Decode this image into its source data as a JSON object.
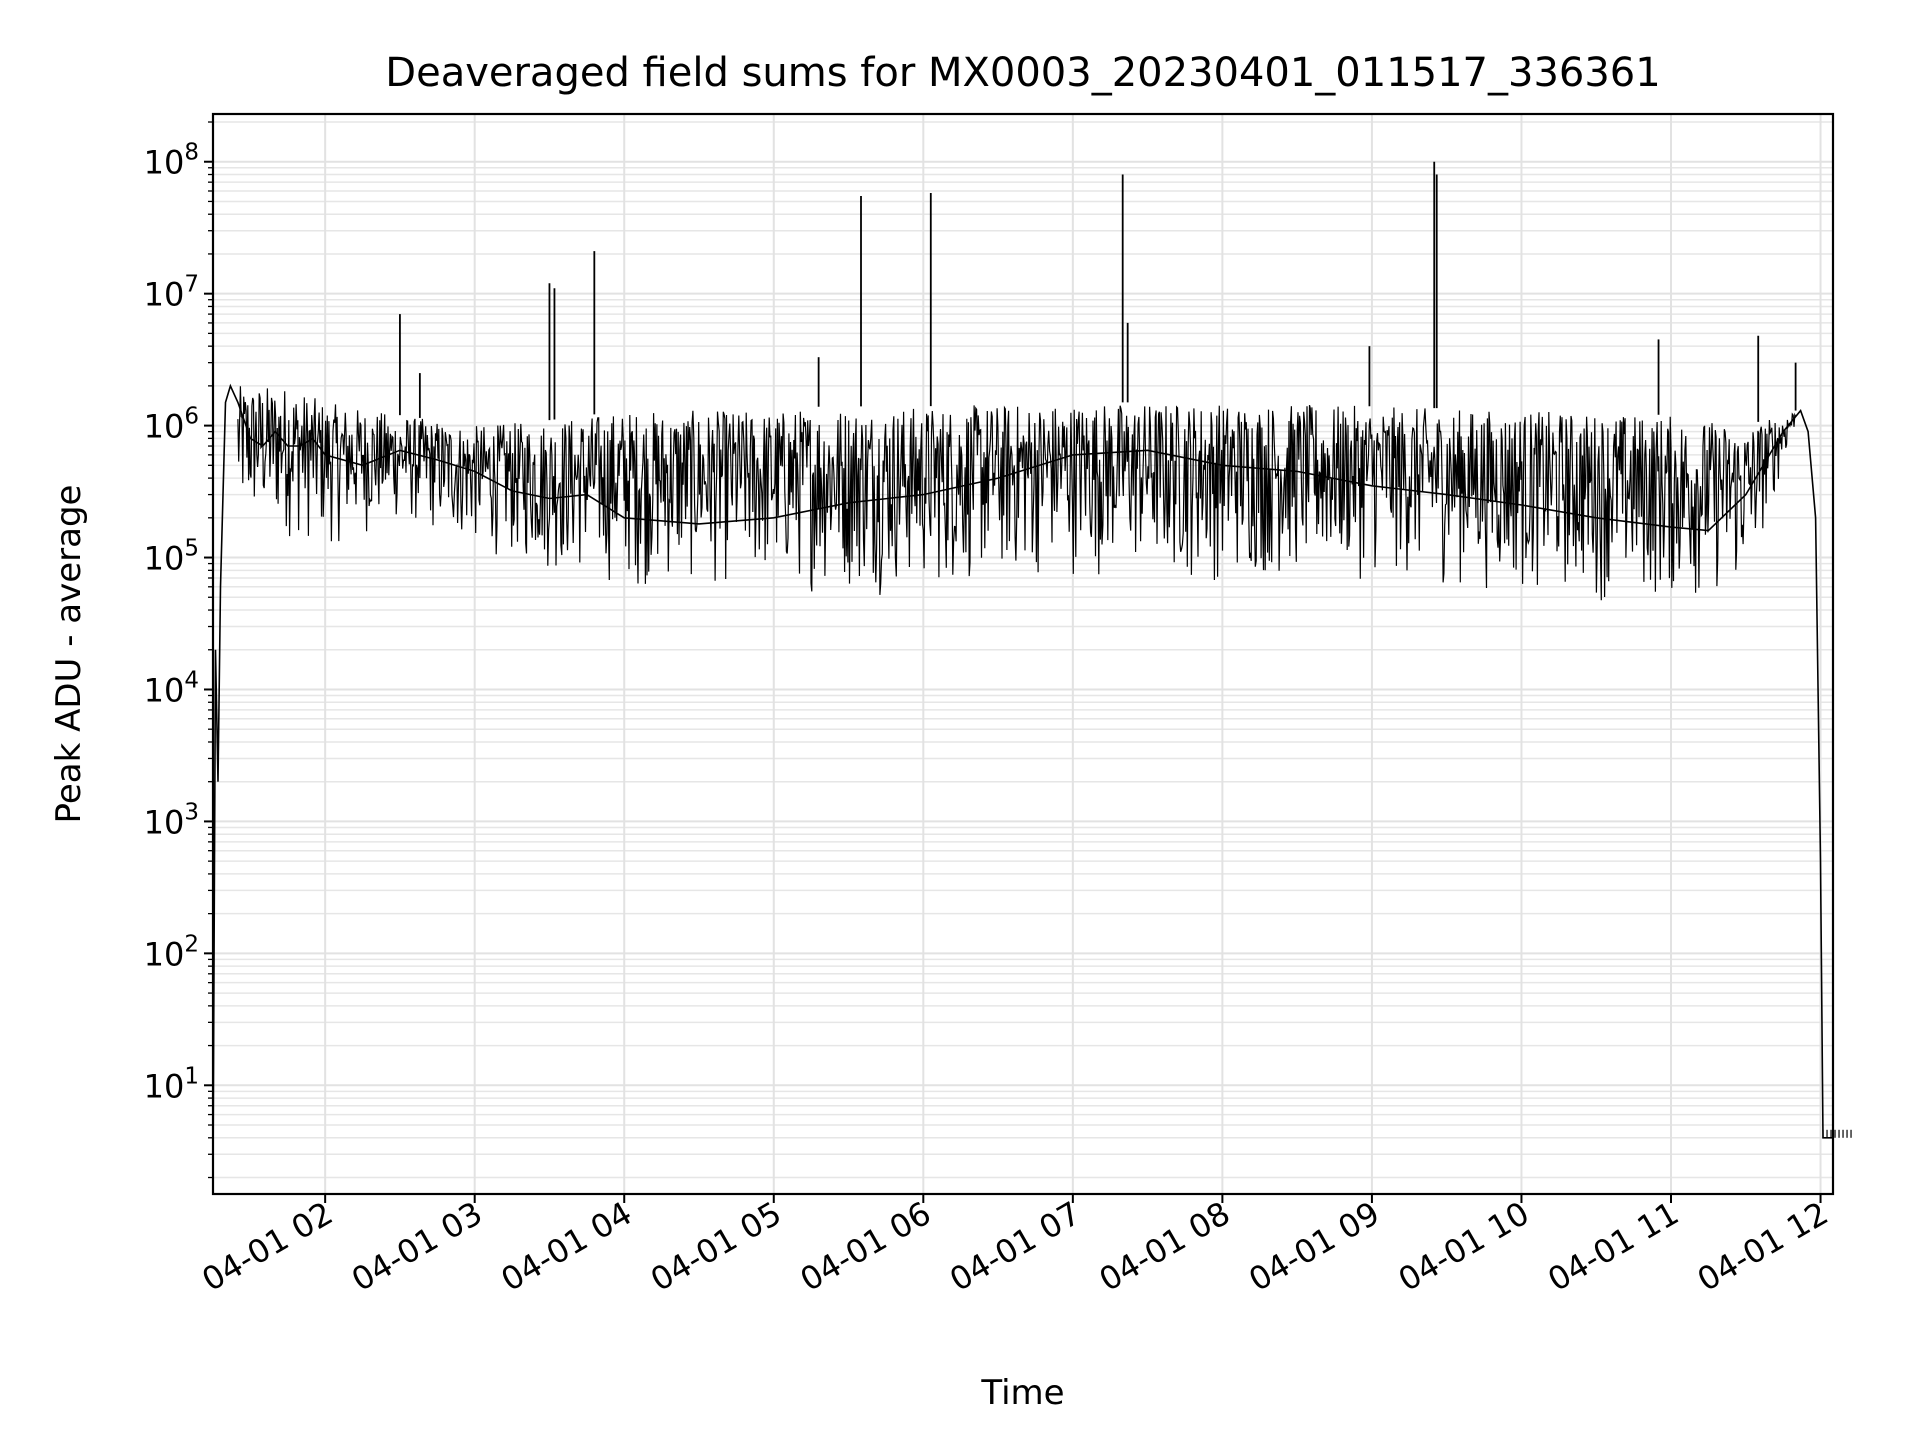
{
  "chart_data": {
    "type": "line",
    "title": "Deaveraged field sums for MX0003_20230401_011517_336361",
    "xlabel": "Time",
    "ylabel": "Peak ADU - average",
    "yscale": "log",
    "ylim": [
      1.5,
      230000000.0
    ],
    "xlim": [
      "2023-04-01T01:15",
      "2023-04-01T12:05"
    ],
    "grid": true,
    "line_color": "#000000",
    "x_ticks": [
      {
        "at": "2023-04-01T02:00",
        "label": "04-01 02"
      },
      {
        "at": "2023-04-01T03:00",
        "label": "04-01 03"
      },
      {
        "at": "2023-04-01T04:00",
        "label": "04-01 04"
      },
      {
        "at": "2023-04-01T05:00",
        "label": "04-01 05"
      },
      {
        "at": "2023-04-01T06:00",
        "label": "04-01 06"
      },
      {
        "at": "2023-04-01T07:00",
        "label": "04-01 07"
      },
      {
        "at": "2023-04-01T08:00",
        "label": "04-01 08"
      },
      {
        "at": "2023-04-01T09:00",
        "label": "04-01 09"
      },
      {
        "at": "2023-04-01T10:00",
        "label": "04-01 10"
      },
      {
        "at": "2023-04-01T11:00",
        "label": "04-01 11"
      },
      {
        "at": "2023-04-01T12:00",
        "label": "04-01 12"
      }
    ],
    "y_ticks": [
      {
        "value": 10,
        "base": "10",
        "exp": "1"
      },
      {
        "value": 100,
        "base": "10",
        "exp": "2"
      },
      {
        "value": 1000,
        "base": "10",
        "exp": "3"
      },
      {
        "value": 10000,
        "base": "10",
        "exp": "4"
      },
      {
        "value": 100000,
        "base": "10",
        "exp": "5"
      },
      {
        "value": 1000000,
        "base": "10",
        "exp": "6"
      },
      {
        "value": 10000000,
        "base": "10",
        "exp": "7"
      },
      {
        "value": 100000000,
        "base": "10",
        "exp": "8"
      }
    ],
    "series": [
      {
        "x": [
          "2023-04-01T01:15",
          "2023-04-01T01:16",
          "2023-04-01T01:17",
          "2023-04-01T01:18",
          "2023-04-01T01:19",
          "2023-04-01T01:20",
          "2023-04-01T01:22",
          "2023-04-01T01:25",
          "2023-04-01T01:30",
          "2023-04-01T01:35",
          "2023-04-01T01:40",
          "2023-04-01T01:45",
          "2023-04-01T01:50",
          "2023-04-01T01:55",
          "2023-04-01T02:00",
          "2023-04-01T02:15",
          "2023-04-01T02:30",
          "2023-04-01T02:45",
          "2023-04-01T03:00",
          "2023-04-01T03:15",
          "2023-04-01T03:30",
          "2023-04-01T03:45",
          "2023-04-01T04:00",
          "2023-04-01T04:30",
          "2023-04-01T05:00",
          "2023-04-01T05:30",
          "2023-04-01T06:00",
          "2023-04-01T06:30",
          "2023-04-01T07:00",
          "2023-04-01T07:30",
          "2023-04-01T08:00",
          "2023-04-01T08:30",
          "2023-04-01T09:00",
          "2023-04-01T09:30",
          "2023-04-01T10:00",
          "2023-04-01T10:30",
          "2023-04-01T11:00",
          "2023-04-01T11:15",
          "2023-04-01T11:30",
          "2023-04-01T11:45",
          "2023-04-01T11:52",
          "2023-04-01T11:55",
          "2023-04-01T11:58",
          "2023-04-01T12:00",
          "2023-04-01T12:01",
          "2023-04-01T12:05"
        ],
        "y": [
          2,
          20000,
          2000,
          60000,
          300000,
          1500000,
          2000000,
          1500000,
          800000,
          700000,
          900000,
          700000,
          700000,
          800000,
          600000,
          500000,
          650000,
          550000,
          450000,
          320000,
          280000,
          300000,
          200000,
          180000,
          200000,
          260000,
          300000,
          400000,
          600000,
          650000,
          500000,
          450000,
          350000,
          300000,
          250000,
          200000,
          170000,
          160000,
          300000,
          900000,
          1300000,
          900000,
          200000,
          500,
          4,
          4
        ]
      }
    ],
    "upper_envelope": {
      "x": [
        "2023-04-01T01:25",
        "2023-04-01T01:45",
        "2023-04-01T02:00",
        "2023-04-01T02:30",
        "2023-04-01T03:00",
        "2023-04-01T03:30",
        "2023-04-01T04:00",
        "2023-04-01T05:00",
        "2023-04-01T05:20",
        "2023-04-01T06:00",
        "2023-04-01T07:00",
        "2023-04-01T08:00",
        "2023-04-01T09:00",
        "2023-04-01T10:00",
        "2023-04-01T11:00",
        "2023-04-01T11:30",
        "2023-04-01T11:50"
      ],
      "y": [
        2000000,
        2000000,
        1500000,
        1200000,
        1000000,
        1100000,
        1300000,
        1300000,
        1400000,
        1400000,
        1500000,
        1500000,
        1400000,
        1300000,
        1200000,
        1000000,
        1300000
      ]
    },
    "lower_envelope": {
      "x": [
        "2023-04-01T01:25",
        "2023-04-01T01:45",
        "2023-04-01T02:00",
        "2023-04-01T02:30",
        "2023-04-01T03:00",
        "2023-04-01T03:30",
        "2023-04-01T04:00",
        "2023-04-01T05:00",
        "2023-04-01T05:20",
        "2023-04-01T06:00",
        "2023-04-01T07:00",
        "2023-04-01T08:00",
        "2023-04-01T09:00",
        "2023-04-01T10:00",
        "2023-04-01T11:00",
        "2023-04-01T11:30",
        "2023-04-01T11:50"
      ],
      "y": [
        150000,
        130000,
        110000,
        170000,
        110000,
        70000,
        55000,
        55000,
        50000,
        50000,
        70000,
        60000,
        65000,
        50000,
        40000,
        50000,
        1000000
      ]
    },
    "spikes": [
      {
        "x": "2023-04-01T02:30",
        "y": 7000000
      },
      {
        "x": "2023-04-01T02:38",
        "y": 2500000
      },
      {
        "x": "2023-04-01T03:30",
        "y": 12000000
      },
      {
        "x": "2023-04-01T03:32",
        "y": 11000000
      },
      {
        "x": "2023-04-01T03:48",
        "y": 21000000
      },
      {
        "x": "2023-04-01T05:18",
        "y": 3300000
      },
      {
        "x": "2023-04-01T05:35",
        "y": 55000000
      },
      {
        "x": "2023-04-01T06:03",
        "y": 58000000
      },
      {
        "x": "2023-04-01T07:20",
        "y": 80000000
      },
      {
        "x": "2023-04-01T07:22",
        "y": 6000000
      },
      {
        "x": "2023-04-01T08:59",
        "y": 4000000
      },
      {
        "x": "2023-04-01T09:25",
        "y": 100000000
      },
      {
        "x": "2023-04-01T09:26",
        "y": 80000000
      },
      {
        "x": "2023-04-01T10:55",
        "y": 4500000
      },
      {
        "x": "2023-04-01T11:35",
        "y": 4800000
      },
      {
        "x": "2023-04-01T11:50",
        "y": 3000000
      }
    ]
  }
}
